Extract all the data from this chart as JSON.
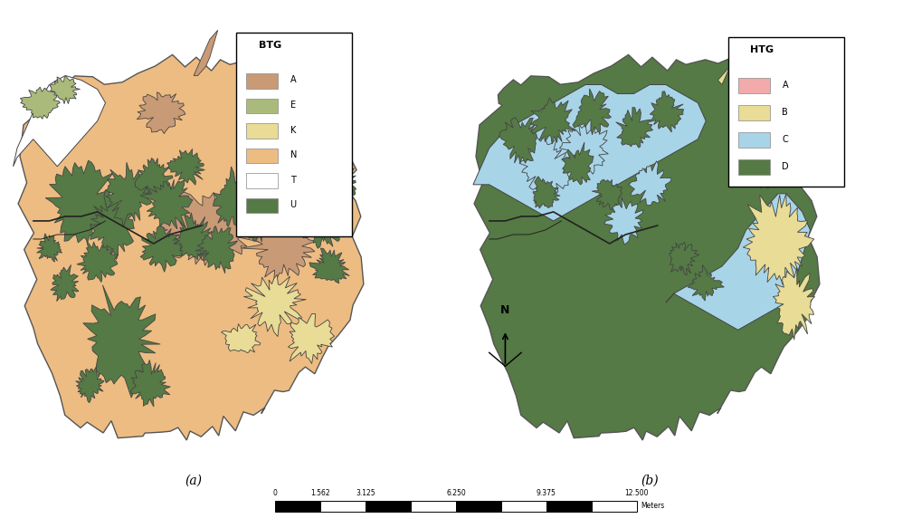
{
  "title_a": "(a)",
  "title_b": "(b)",
  "btg_legend_title": "BTG",
  "btg_legend_items": [
    {
      "label": "A",
      "color": "#C99A76"
    },
    {
      "label": "E",
      "color": "#AABA7A"
    },
    {
      "label": "K",
      "color": "#E8DC96"
    },
    {
      "label": "N",
      "color": "#EDBC82"
    },
    {
      "label": "T",
      "color": "#FFFFFF"
    },
    {
      "label": "U",
      "color": "#557A45"
    }
  ],
  "htg_legend_title": "HTG",
  "htg_legend_items": [
    {
      "label": "A",
      "color": "#F2AAAA"
    },
    {
      "label": "B",
      "color": "#E8DC96"
    },
    {
      "label": "C",
      "color": "#A8D4E8"
    },
    {
      "label": "D",
      "color": "#557A45"
    }
  ],
  "scalebar_labels": [
    "0",
    "1.562",
    "3.125",
    "6.250",
    "9.375",
    "12.500"
  ],
  "scalebar_unit": "Meters",
  "background_color": "#FFFFFF"
}
